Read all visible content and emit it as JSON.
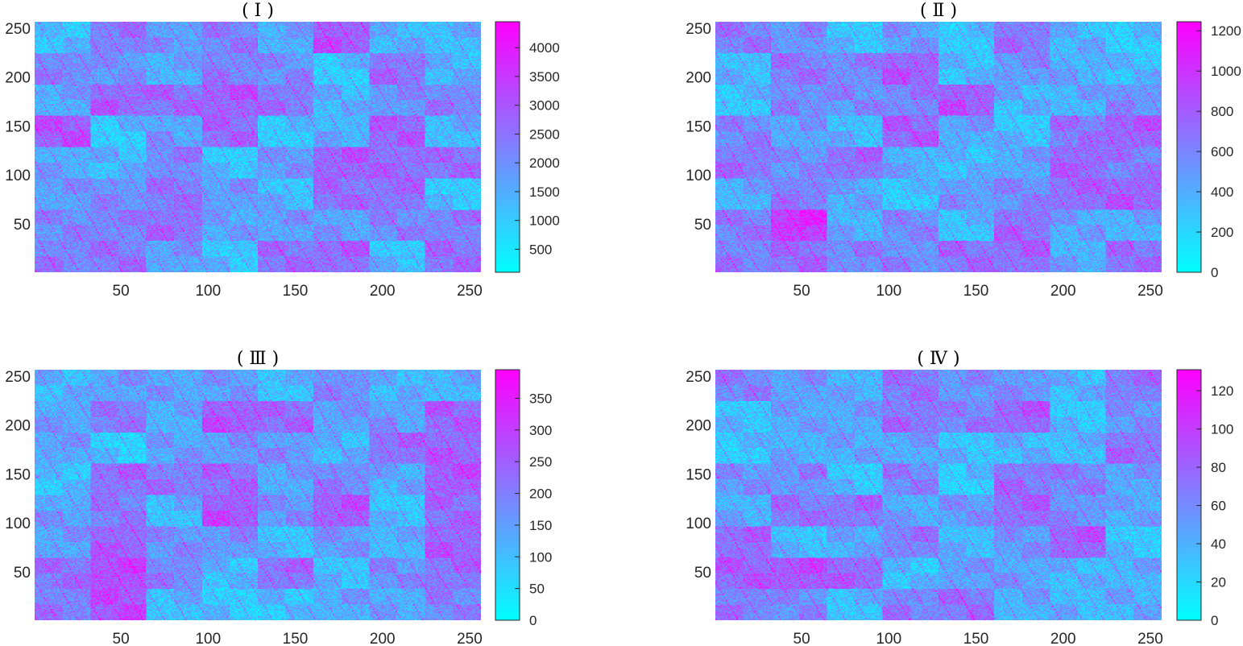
{
  "chart_data": [
    {
      "type": "heatmap",
      "title": "( Ⅰ )",
      "x_ticks": [
        50,
        100,
        150,
        200,
        250
      ],
      "y_ticks": [
        50,
        100,
        150,
        200,
        250
      ],
      "xlim": [
        1,
        256
      ],
      "ylim": [
        1,
        256
      ],
      "colorbar_ticks": [
        500,
        1000,
        1500,
        2000,
        2500,
        3000,
        3500,
        4000
      ],
      "colorbar_range": [
        100,
        4450
      ],
      "colormap": [
        "#00ffff",
        "#ff00ff"
      ],
      "seed": 11
    },
    {
      "type": "heatmap",
      "title": "( Ⅱ )",
      "x_ticks": [
        50,
        100,
        150,
        200,
        250
      ],
      "y_ticks": [
        50,
        100,
        150,
        200,
        250
      ],
      "xlim": [
        1,
        256
      ],
      "ylim": [
        1,
        256
      ],
      "colorbar_ticks": [
        0,
        200,
        400,
        600,
        800,
        1000,
        1200
      ],
      "colorbar_range": [
        0,
        1245
      ],
      "colormap": [
        "#00ffff",
        "#ff00ff"
      ],
      "seed": 23
    },
    {
      "type": "heatmap",
      "title": "( Ⅲ )",
      "x_ticks": [
        50,
        100,
        150,
        200,
        250
      ],
      "y_ticks": [
        50,
        100,
        150,
        200,
        250
      ],
      "xlim": [
        1,
        256
      ],
      "ylim": [
        1,
        256
      ],
      "colorbar_ticks": [
        0,
        50,
        100,
        150,
        200,
        250,
        300,
        350
      ],
      "colorbar_range": [
        0,
        395
      ],
      "colormap": [
        "#00ffff",
        "#ff00ff"
      ],
      "seed": 37
    },
    {
      "type": "heatmap",
      "title": "( Ⅳ )",
      "x_ticks": [
        50,
        100,
        150,
        200,
        250
      ],
      "y_ticks": [
        50,
        100,
        150,
        200,
        250
      ],
      "xlim": [
        1,
        256
      ],
      "ylim": [
        1,
        256
      ],
      "colorbar_ticks": [
        0,
        20,
        40,
        60,
        80,
        100,
        120
      ],
      "colorbar_range": [
        0,
        131
      ],
      "colormap": [
        "#00ffff",
        "#ff00ff"
      ],
      "seed": 53
    }
  ]
}
